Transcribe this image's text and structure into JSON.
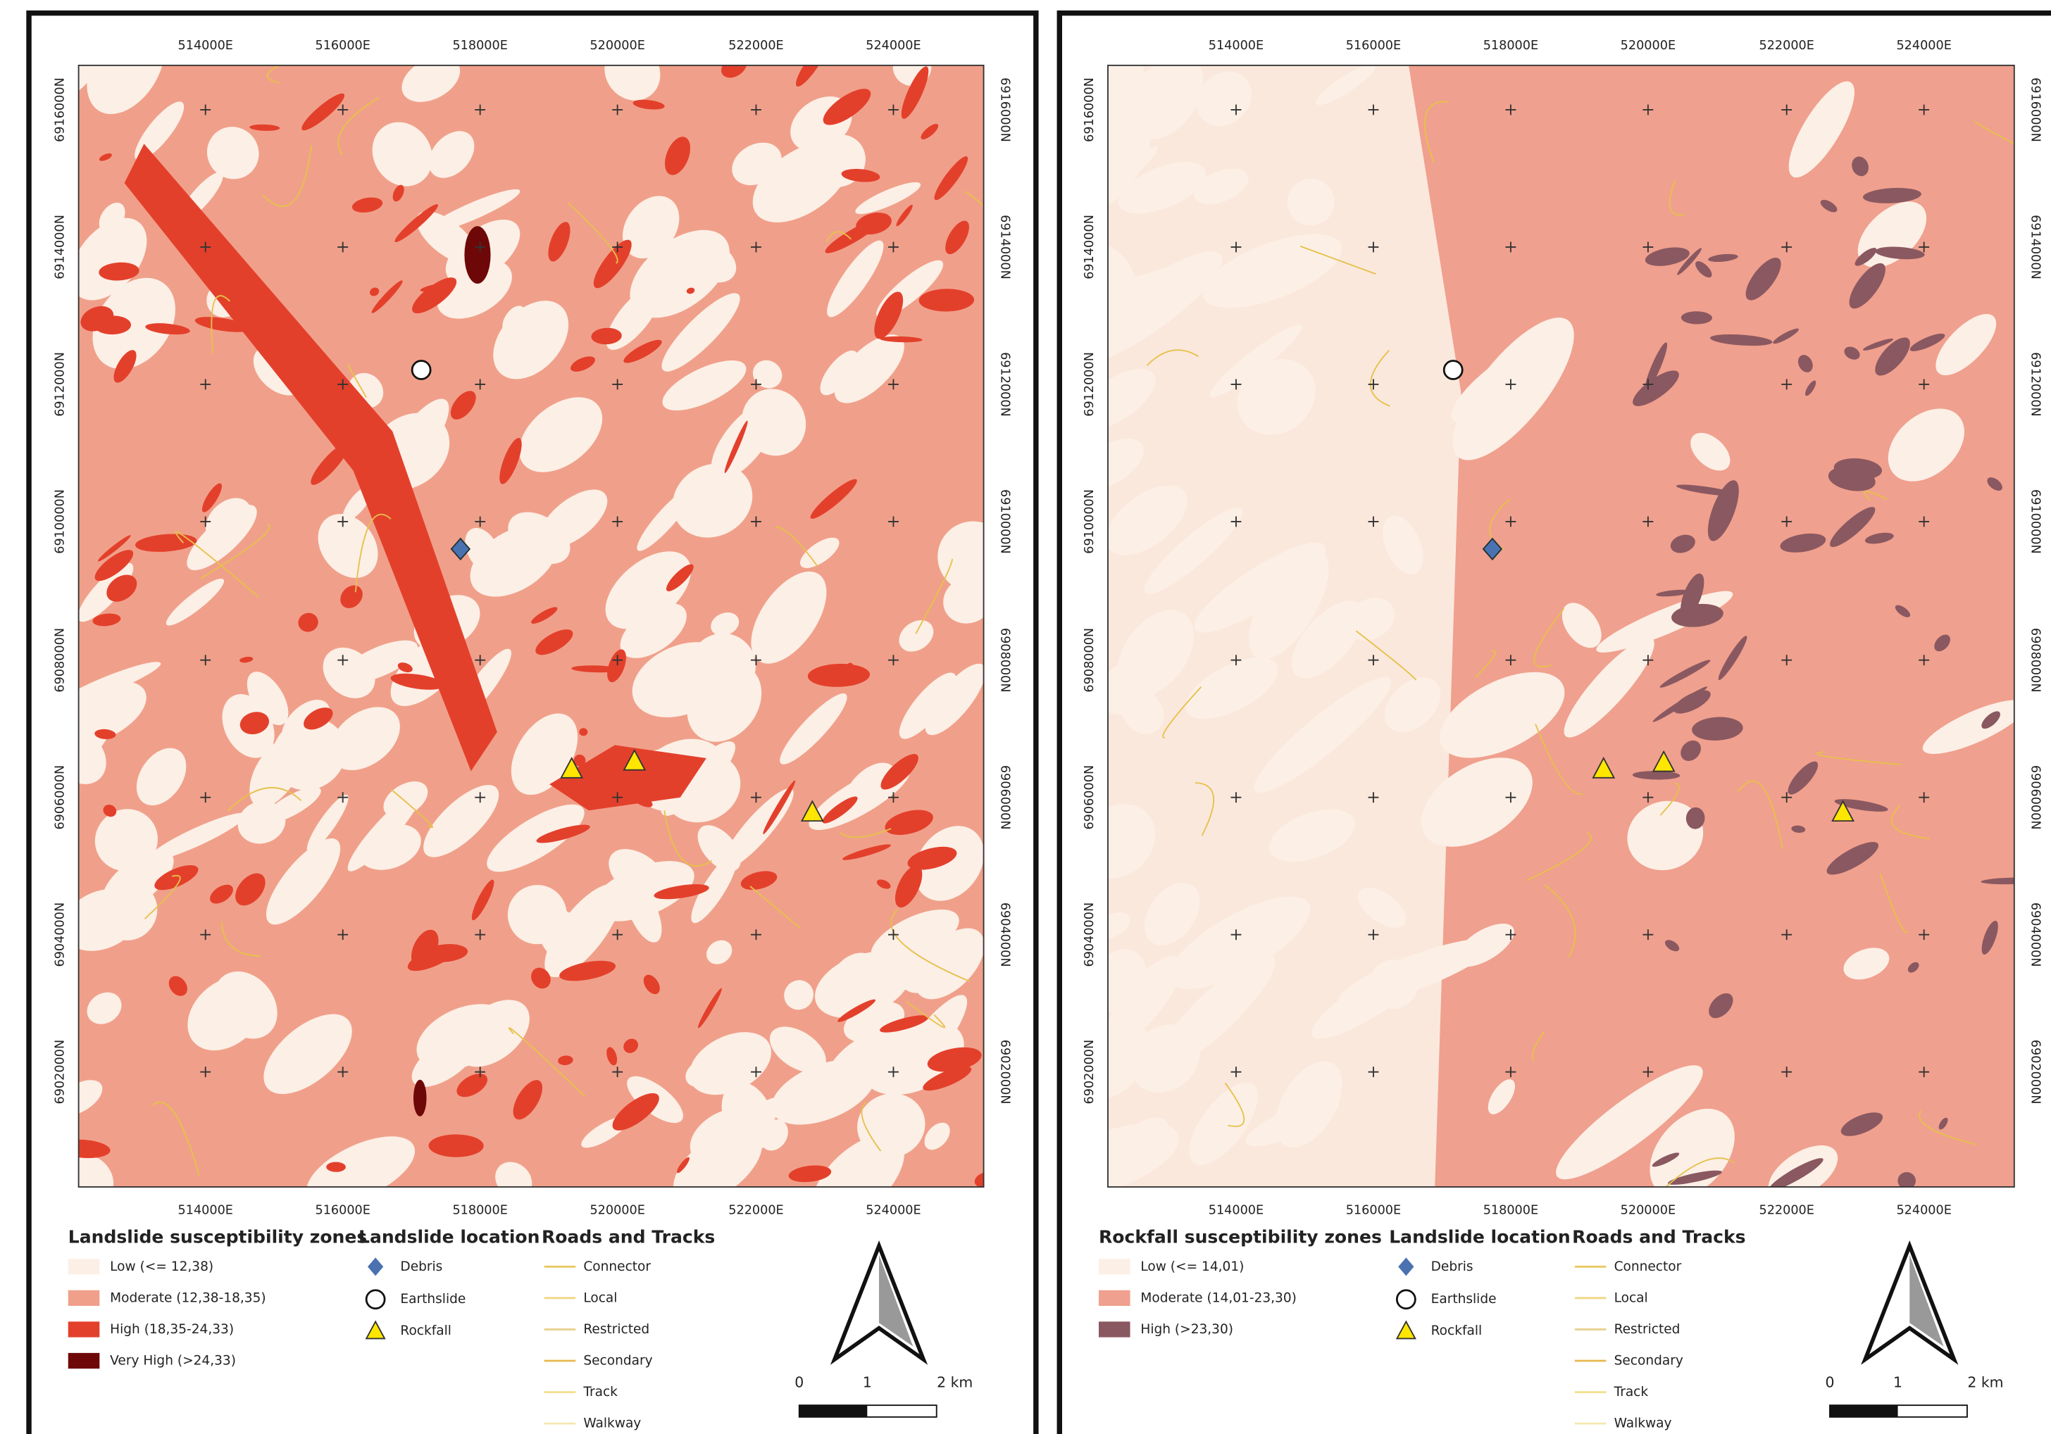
{
  "panels": [
    {
      "x_ticks": [
        "514000E",
        "516000E",
        "518000E",
        "520000E",
        "522000E",
        "524000E"
      ],
      "y_ticks": [
        "6916000N",
        "6914000N",
        "6912000N",
        "6910000N",
        "6908000N",
        "6906000N",
        "6904000N",
        "6902000N"
      ],
      "zones": {
        "title": "Landslide susceptibility zones",
        "items": [
          {
            "label": "Low (<= 12,38)",
            "color": "#fcefe6"
          },
          {
            "label": "Moderate (12,38-18,35)",
            "color": "#f0a08a"
          },
          {
            "label": "High (18,35-24,33)",
            "color": "#e3402c"
          },
          {
            "label": "Very High (>24,33)",
            "color": "#6e0808"
          }
        ]
      },
      "locations": {
        "title": "Landslide location",
        "items": [
          "Debris",
          "Earthslide",
          "Rockfall"
        ]
      },
      "roads": {
        "title": "Roads and Tracks",
        "items": [
          "Connector",
          "Local",
          "Restricted",
          "Secondary",
          "Track",
          "Walkway"
        ]
      },
      "scale": [
        "0",
        "1",
        "2 km"
      ]
    },
    {
      "x_ticks": [
        "514000E",
        "516000E",
        "518000E",
        "520000E",
        "522000E",
        "524000E"
      ],
      "y_ticks": [
        "6916000N",
        "6914000N",
        "6912000N",
        "6910000N",
        "6908000N",
        "6906000N",
        "6904000N",
        "6902000N"
      ],
      "zones": {
        "title": "Rockfall susceptibility zones",
        "items": [
          {
            "label": "Low (<= 14,01)",
            "color": "#fcefe6"
          },
          {
            "label": "Moderate (14,01-23,30)",
            "color": "#f0a08e"
          },
          {
            "label": "High (>23,30)",
            "color": "#8a5860"
          }
        ]
      },
      "locations": {
        "title": "Landslide location",
        "items": [
          "Debris",
          "Earthslide",
          "Rockfall"
        ]
      },
      "roads": {
        "title": "Roads and Tracks",
        "items": [
          "Connector",
          "Local",
          "Restricted",
          "Secondary",
          "Track",
          "Walkway"
        ]
      },
      "scale": [
        "0",
        "1",
        "2 km"
      ]
    }
  ]
}
